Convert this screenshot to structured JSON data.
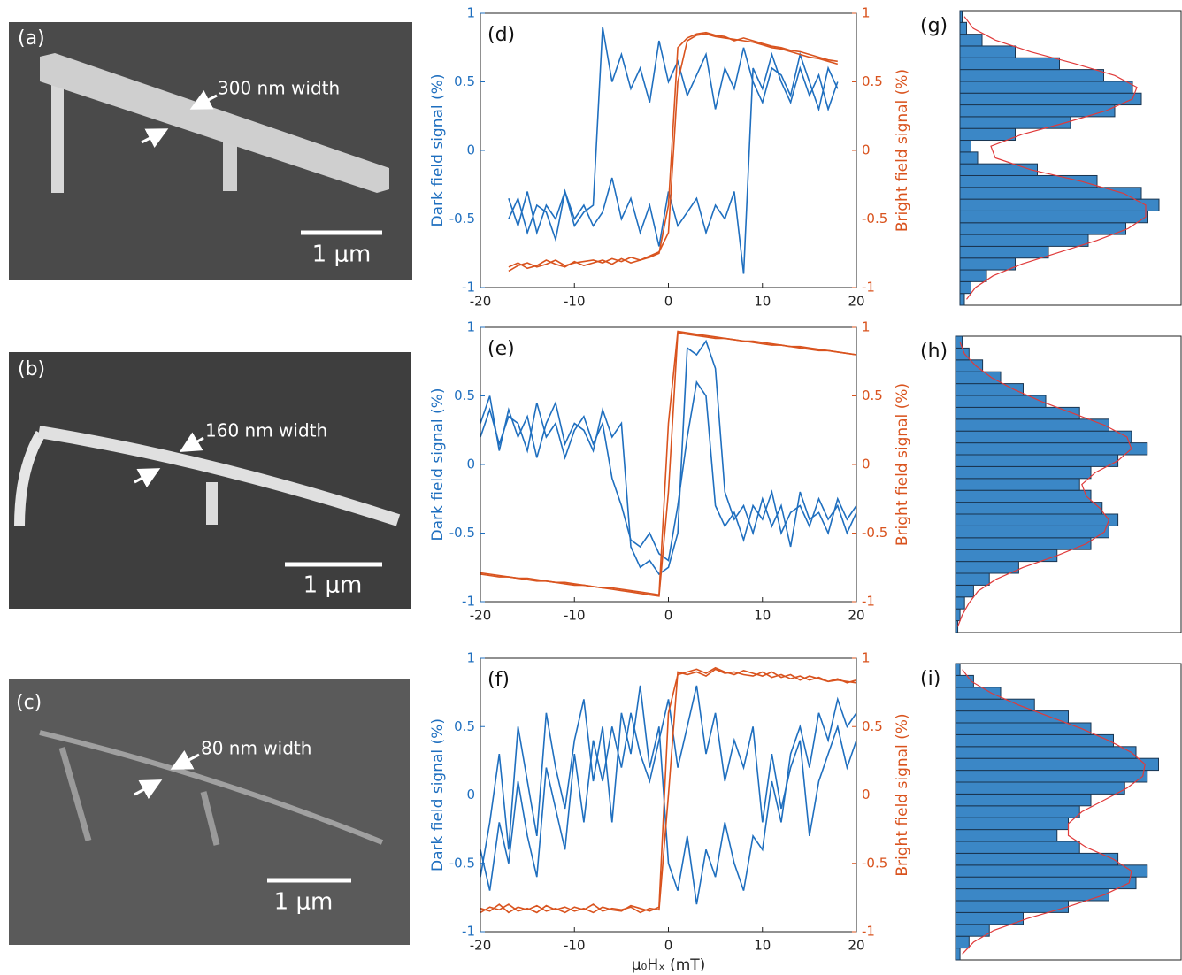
{
  "images": [
    {
      "label": "(a)",
      "annotation": "300 nm width",
      "scale_bar": "1 μm"
    },
    {
      "label": "(b)",
      "annotation": "160 nm width",
      "scale_bar": "1 μm"
    },
    {
      "label": "(c)",
      "annotation": "80 nm width",
      "scale_bar": "1 μm"
    }
  ],
  "chart_data": [
    {
      "type": "line",
      "title": "(d)",
      "ylabel": "Dark field signal (%)",
      "y2label": "Bright field signal (%)",
      "x": [
        -17,
        -16,
        -15,
        -14,
        -13,
        -12,
        -11,
        -10,
        -9,
        -8,
        -7,
        -6,
        -5,
        -4,
        -3,
        -2,
        -1,
        0,
        1,
        2,
        3,
        4,
        5,
        6,
        7,
        8,
        9,
        10,
        11,
        12,
        13,
        14,
        15,
        16,
        17,
        18
      ],
      "xlim": [
        -20,
        20
      ],
      "xticks": [
        -20,
        -10,
        0,
        10,
        20
      ],
      "ylim": [
        -1,
        1
      ],
      "yticks": [
        -1,
        -0.5,
        0,
        0.5,
        1
      ],
      "y2lim": [
        -1,
        1
      ],
      "y2ticks": [
        -1,
        -0.5,
        0,
        0.5,
        1
      ],
      "series": [
        {
          "color": "#1f6fbf",
          "values": [
            -0.35,
            -0.55,
            -0.3,
            -0.6,
            -0.4,
            -0.5,
            -0.3,
            -0.55,
            -0.45,
            -0.4,
            0.9,
            0.5,
            0.7,
            0.45,
            0.6,
            0.35,
            0.8,
            0.5,
            0.65,
            0.4,
            0.55,
            0.7,
            0.3,
            0.6,
            0.45,
            0.75,
            0.5,
            0.35,
            0.6,
            0.55,
            0.4,
            0.7,
            0.5,
            0.3,
            0.6,
            0.45
          ]
        },
        {
          "color": "#1f6fbf",
          "values": [
            -0.5,
            -0.35,
            -0.6,
            -0.4,
            -0.45,
            -0.65,
            -0.3,
            -0.5,
            -0.4,
            -0.55,
            -0.45,
            -0.2,
            -0.5,
            -0.35,
            -0.6,
            -0.4,
            -0.7,
            -0.3,
            -0.55,
            -0.45,
            -0.35,
            -0.6,
            -0.4,
            -0.5,
            -0.3,
            -0.9,
            0.6,
            0.45,
            0.7,
            0.5,
            0.35,
            0.6,
            0.4,
            0.55,
            0.3,
            0.5
          ]
        },
        {
          "color": "#d9531e",
          "axis": "y2",
          "values": [
            -0.85,
            -0.82,
            -0.86,
            -0.84,
            -0.8,
            -0.83,
            -0.85,
            -0.81,
            -0.84,
            -0.82,
            -0.8,
            -0.83,
            -0.79,
            -0.82,
            -0.8,
            -0.78,
            -0.75,
            -0.4,
            0.75,
            0.82,
            0.85,
            0.86,
            0.84,
            0.83,
            0.8,
            0.82,
            0.8,
            0.78,
            0.76,
            0.75,
            0.73,
            0.72,
            0.7,
            0.68,
            0.66,
            0.65
          ]
        },
        {
          "color": "#d9531e",
          "axis": "y2",
          "values": [
            -0.88,
            -0.84,
            -0.82,
            -0.85,
            -0.83,
            -0.8,
            -0.84,
            -0.82,
            -0.81,
            -0.8,
            -0.82,
            -0.79,
            -0.81,
            -0.78,
            -0.8,
            -0.77,
            -0.74,
            -0.6,
            0.5,
            0.8,
            0.84,
            0.85,
            0.83,
            0.82,
            0.81,
            0.8,
            0.79,
            0.77,
            0.75,
            0.74,
            0.72,
            0.7,
            0.68,
            0.67,
            0.65,
            0.63
          ]
        }
      ]
    },
    {
      "type": "line",
      "title": "(e)",
      "ylabel": "Dark field signal (%)",
      "y2label": "Bright field signal (%)",
      "x": [
        -20,
        -19,
        -18,
        -17,
        -16,
        -15,
        -14,
        -13,
        -12,
        -11,
        -10,
        -9,
        -8,
        -7,
        -6,
        -5,
        -4,
        -3,
        -2,
        -1,
        0,
        1,
        2,
        3,
        4,
        5,
        6,
        7,
        8,
        9,
        10,
        11,
        12,
        13,
        14,
        15,
        16,
        17,
        18,
        19,
        20
      ],
      "xlim": [
        -20,
        20
      ],
      "xticks": [
        -20,
        -10,
        0,
        10,
        20
      ],
      "ylim": [
        -1,
        1
      ],
      "yticks": [
        -1,
        -0.5,
        0,
        0.5,
        1
      ],
      "y2lim": [
        -1,
        1
      ],
      "y2ticks": [
        -1,
        -0.5,
        0,
        0.5,
        1
      ],
      "series": [
        {
          "color": "#1f6fbf",
          "values": [
            0.3,
            0.5,
            0.1,
            0.4,
            0.2,
            0.35,
            0.05,
            0.3,
            0.45,
            0.15,
            0.3,
            0.25,
            0.1,
            0.4,
            0.2,
            0.3,
            -0.6,
            -0.75,
            -0.7,
            -0.8,
            -0.75,
            -0.5,
            0.85,
            0.8,
            0.9,
            0.7,
            -0.2,
            -0.4,
            -0.3,
            -0.5,
            -0.25,
            -0.45,
            -0.3,
            -0.6,
            -0.2,
            -0.4,
            -0.35,
            -0.5,
            -0.25,
            -0.4,
            -0.3
          ]
        },
        {
          "color": "#1f6fbf",
          "values": [
            0.2,
            0.4,
            0.15,
            0.35,
            0.3,
            0.1,
            0.45,
            0.2,
            0.3,
            0.05,
            0.25,
            0.35,
            0.15,
            0.3,
            -0.1,
            -0.3,
            -0.55,
            -0.6,
            -0.5,
            -0.65,
            -0.7,
            -0.3,
            0.2,
            0.6,
            0.5,
            -0.3,
            -0.45,
            -0.35,
            -0.55,
            -0.3,
            -0.4,
            -0.2,
            -0.5,
            -0.35,
            -0.3,
            -0.45,
            -0.25,
            -0.4,
            -0.3,
            -0.5,
            -0.35
          ]
        },
        {
          "color": "#d9531e",
          "axis": "y2",
          "values": [
            -0.8,
            -0.81,
            -0.82,
            -0.82,
            -0.83,
            -0.84,
            -0.85,
            -0.85,
            -0.86,
            -0.87,
            -0.88,
            -0.88,
            -0.89,
            -0.9,
            -0.91,
            -0.92,
            -0.93,
            -0.94,
            -0.95,
            -0.96,
            -0.2,
            0.96,
            0.95,
            0.94,
            0.93,
            0.92,
            0.92,
            0.91,
            0.9,
            0.89,
            0.88,
            0.87,
            0.87,
            0.86,
            0.85,
            0.84,
            0.83,
            0.83,
            0.82,
            0.81,
            0.8
          ]
        },
        {
          "color": "#d9531e",
          "axis": "y2",
          "values": [
            -0.79,
            -0.8,
            -0.81,
            -0.82,
            -0.83,
            -0.83,
            -0.84,
            -0.85,
            -0.86,
            -0.86,
            -0.87,
            -0.88,
            -0.89,
            -0.9,
            -0.9,
            -0.91,
            -0.92,
            -0.93,
            -0.94,
            -0.95,
            0.3,
            0.97,
            0.96,
            0.95,
            0.94,
            0.93,
            0.92,
            0.91,
            0.9,
            0.9,
            0.89,
            0.88,
            0.87,
            0.86,
            0.86,
            0.85,
            0.84,
            0.83,
            0.82,
            0.81,
            0.8
          ]
        }
      ]
    },
    {
      "type": "line",
      "title": "(f)",
      "ylabel": "Dark field signal (%)",
      "y2label": "Bright field signal (%)",
      "xlabel": "μ₀Hₓ (mT)",
      "x": [
        -20,
        -19,
        -18,
        -17,
        -16,
        -15,
        -14,
        -13,
        -12,
        -11,
        -10,
        -9,
        -8,
        -7,
        -6,
        -5,
        -4,
        -3,
        -2,
        -1,
        0,
        1,
        2,
        3,
        4,
        5,
        6,
        7,
        8,
        9,
        10,
        11,
        12,
        13,
        14,
        15,
        16,
        17,
        18,
        19,
        20
      ],
      "xlim": [
        -20,
        20
      ],
      "xticks": [
        -20,
        -10,
        0,
        10,
        20
      ],
      "ylim": [
        -1,
        1
      ],
      "yticks": [
        -1,
        -0.5,
        0,
        0.5,
        1
      ],
      "y2lim": [
        -1,
        1
      ],
      "y2ticks": [
        -1,
        -0.5,
        0,
        0.5,
        1
      ],
      "series": [
        {
          "color": "#1f6fbf",
          "values": [
            -0.6,
            -0.2,
            0.3,
            -0.4,
            0.5,
            0.1,
            -0.3,
            0.6,
            0.2,
            -0.1,
            0.4,
            0.7,
            0.1,
            0.5,
            -0.2,
            0.6,
            0.3,
            0.8,
            0.2,
            0.5,
            -0.5,
            -0.7,
            -0.3,
            -0.8,
            -0.4,
            -0.6,
            -0.2,
            -0.5,
            -0.7,
            -0.3,
            -0.4,
            0.1,
            -0.2,
            0.3,
            0.5,
            0.2,
            0.6,
            0.4,
            0.7,
            0.5,
            0.6
          ]
        },
        {
          "color": "#1f6fbf",
          "values": [
            -0.4,
            -0.7,
            -0.2,
            -0.5,
            0.1,
            -0.3,
            -0.6,
            0.2,
            -0.1,
            -0.4,
            0.3,
            -0.2,
            0.4,
            0.1,
            0.5,
            0.2,
            0.6,
            0.3,
            0.1,
            0.4,
            0.7,
            0.2,
            0.5,
            0.8,
            0.3,
            0.6,
            0.1,
            0.4,
            0.2,
            0.5,
            -0.2,
            0.3,
            -0.1,
            0.2,
            0.4,
            -0.3,
            0.1,
            0.3,
            0.5,
            0.2,
            0.4
          ]
        },
        {
          "color": "#d9531e",
          "axis": "y2",
          "values": [
            -0.83,
            -0.85,
            -0.8,
            -0.86,
            -0.82,
            -0.84,
            -0.81,
            -0.85,
            -0.83,
            -0.86,
            -0.82,
            -0.84,
            -0.8,
            -0.85,
            -0.83,
            -0.84,
            -0.82,
            -0.86,
            -0.83,
            -0.84,
            0,
            0.9,
            0.88,
            0.9,
            0.87,
            0.92,
            0.89,
            0.9,
            0.88,
            0.87,
            0.9,
            0.86,
            0.88,
            0.85,
            0.87,
            0.84,
            0.86,
            0.83,
            0.85,
            0.82,
            0.84
          ]
        },
        {
          "color": "#d9531e",
          "axis": "y2",
          "values": [
            -0.86,
            -0.82,
            -0.84,
            -0.8,
            -0.85,
            -0.83,
            -0.86,
            -0.81,
            -0.84,
            -0.82,
            -0.85,
            -0.83,
            -0.86,
            -0.82,
            -0.84,
            -0.85,
            -0.81,
            -0.83,
            -0.85,
            -0.82,
            0.6,
            0.88,
            0.9,
            0.92,
            0.89,
            0.93,
            0.9,
            0.88,
            0.91,
            0.89,
            0.87,
            0.9,
            0.86,
            0.88,
            0.84,
            0.87,
            0.85,
            0.83,
            0.84,
            0.83,
            0.82
          ]
        }
      ]
    },
    {
      "type": "histogram",
      "title": "(g)",
      "color": "#3b87c6",
      "fit_color": "#e03a3a",
      "xlim": [
        0,
        1
      ],
      "ylim": [
        -1,
        1
      ],
      "bins": [
        -1,
        -0.92,
        -0.84,
        -0.76,
        -0.68,
        -0.6,
        -0.52,
        -0.44,
        -0.36,
        -0.28,
        -0.2,
        -0.12,
        -0.04,
        0.04,
        0.12,
        0.2,
        0.28,
        0.36,
        0.44,
        0.52,
        0.6,
        0.68,
        0.76,
        0.84,
        0.92,
        1
      ],
      "values": [
        0.02,
        0.05,
        0.12,
        0.25,
        0.4,
        0.58,
        0.75,
        0.85,
        0.9,
        0.82,
        0.62,
        0.35,
        0.08,
        0.05,
        0.25,
        0.5,
        0.7,
        0.82,
        0.78,
        0.65,
        0.45,
        0.25,
        0.1,
        0.03,
        0.01
      ],
      "fit": [
        0.03,
        0.07,
        0.15,
        0.28,
        0.45,
        0.62,
        0.76,
        0.84,
        0.84,
        0.74,
        0.55,
        0.32,
        0.16,
        0.14,
        0.28,
        0.48,
        0.66,
        0.78,
        0.8,
        0.7,
        0.52,
        0.32,
        0.16,
        0.06,
        0.02
      ]
    },
    {
      "type": "histogram",
      "title": "(h)",
      "color": "#3b87c6",
      "fit_color": "#e03a3a",
      "xlim": [
        0,
        1
      ],
      "ylim": [
        -1,
        1
      ],
      "bins": [
        -1,
        -0.92,
        -0.84,
        -0.76,
        -0.68,
        -0.6,
        -0.52,
        -0.44,
        -0.36,
        -0.28,
        -0.2,
        -0.12,
        -0.04,
        0.04,
        0.12,
        0.2,
        0.28,
        0.36,
        0.44,
        0.52,
        0.6,
        0.68,
        0.76,
        0.84,
        0.92,
        1
      ],
      "values": [
        0.01,
        0.02,
        0.04,
        0.08,
        0.15,
        0.28,
        0.45,
        0.6,
        0.68,
        0.72,
        0.65,
        0.6,
        0.55,
        0.6,
        0.72,
        0.85,
        0.78,
        0.68,
        0.55,
        0.4,
        0.3,
        0.2,
        0.12,
        0.06,
        0.03
      ],
      "fit": [
        0.01,
        0.03,
        0.06,
        0.1,
        0.18,
        0.3,
        0.45,
        0.58,
        0.66,
        0.68,
        0.64,
        0.58,
        0.56,
        0.62,
        0.72,
        0.78,
        0.76,
        0.66,
        0.52,
        0.38,
        0.26,
        0.16,
        0.09,
        0.04,
        0.02
      ]
    },
    {
      "type": "histogram",
      "title": "(i)",
      "color": "#3b87c6",
      "fit_color": "#e03a3a",
      "xlim": [
        0,
        1
      ],
      "ylim": [
        -1,
        1
      ],
      "bins": [
        -1,
        -0.92,
        -0.84,
        -0.76,
        -0.68,
        -0.6,
        -0.52,
        -0.44,
        -0.36,
        -0.28,
        -0.2,
        -0.12,
        -0.04,
        0.04,
        0.12,
        0.2,
        0.28,
        0.36,
        0.44,
        0.52,
        0.6,
        0.68,
        0.76,
        0.84,
        0.92,
        1
      ],
      "values": [
        0.02,
        0.06,
        0.15,
        0.3,
        0.5,
        0.68,
        0.8,
        0.85,
        0.72,
        0.55,
        0.45,
        0.5,
        0.55,
        0.6,
        0.75,
        0.85,
        0.9,
        0.8,
        0.7,
        0.6,
        0.5,
        0.35,
        0.2,
        0.08,
        0.02
      ],
      "fit": [
        0.03,
        0.08,
        0.17,
        0.32,
        0.5,
        0.66,
        0.77,
        0.78,
        0.7,
        0.58,
        0.5,
        0.5,
        0.56,
        0.66,
        0.76,
        0.83,
        0.84,
        0.78,
        0.68,
        0.56,
        0.42,
        0.28,
        0.16,
        0.07,
        0.03
      ]
    }
  ]
}
